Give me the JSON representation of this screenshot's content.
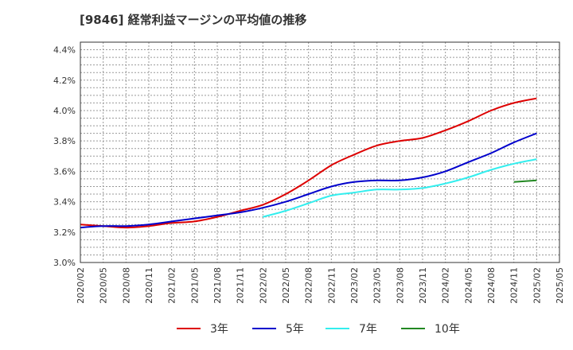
{
  "title": "[9846]  経常利益マージンの平均値の推移",
  "chart_data": {
    "type": "line",
    "title": "[9846]  経常利益マージンの平均値の推移",
    "xlabel": "",
    "ylabel": "",
    "x_ticks": [
      "2020/02",
      "2020/05",
      "2020/08",
      "2020/11",
      "2021/02",
      "2021/05",
      "2021/08",
      "2021/11",
      "2022/02",
      "2022/05",
      "2022/08",
      "2022/11",
      "2023/02",
      "2023/05",
      "2023/08",
      "2023/11",
      "2024/02",
      "2024/05",
      "2024/08",
      "2024/11",
      "2025/02",
      "2025/05"
    ],
    "y_ticks": [
      "3.0%",
      "3.2%",
      "3.4%",
      "3.6%",
      "3.8%",
      "4.0%",
      "4.2%",
      "4.4%"
    ],
    "ylim": [
      3.0,
      4.45
    ],
    "grid": true,
    "legend_position": "bottom",
    "series": [
      {
        "name": "3年",
        "color": "#dd0000",
        "x": [
          "2020/02",
          "2020/05",
          "2020/08",
          "2020/11",
          "2021/02",
          "2021/05",
          "2021/08",
          "2021/11",
          "2022/02",
          "2022/05",
          "2022/08",
          "2022/11",
          "2023/02",
          "2023/05",
          "2023/08",
          "2023/11",
          "2024/02",
          "2024/05",
          "2024/08",
          "2024/11",
          "2025/02"
        ],
        "values": [
          3.25,
          3.24,
          3.23,
          3.24,
          3.26,
          3.27,
          3.3,
          3.34,
          3.38,
          3.45,
          3.54,
          3.64,
          3.71,
          3.77,
          3.8,
          3.82,
          3.87,
          3.93,
          4.0,
          4.05,
          4.08
        ]
      },
      {
        "name": "5年",
        "color": "#0000cc",
        "x": [
          "2020/02",
          "2020/05",
          "2020/08",
          "2020/11",
          "2021/02",
          "2021/05",
          "2021/08",
          "2021/11",
          "2022/02",
          "2022/05",
          "2022/08",
          "2022/11",
          "2023/02",
          "2023/05",
          "2023/08",
          "2023/11",
          "2024/02",
          "2024/05",
          "2024/08",
          "2024/11",
          "2025/02"
        ],
        "values": [
          3.23,
          3.24,
          3.24,
          3.25,
          3.27,
          3.29,
          3.31,
          3.33,
          3.36,
          3.4,
          3.45,
          3.5,
          3.53,
          3.54,
          3.54,
          3.56,
          3.6,
          3.66,
          3.72,
          3.79,
          3.85
        ]
      },
      {
        "name": "7年",
        "color": "#33eeee",
        "x": [
          "2022/02",
          "2022/05",
          "2022/08",
          "2022/11",
          "2023/02",
          "2023/05",
          "2023/08",
          "2023/11",
          "2024/02",
          "2024/05",
          "2024/08",
          "2024/11",
          "2025/02"
        ],
        "values": [
          3.3,
          3.34,
          3.39,
          3.44,
          3.46,
          3.48,
          3.48,
          3.49,
          3.52,
          3.56,
          3.61,
          3.65,
          3.68
        ]
      },
      {
        "name": "10年",
        "color": "#228822",
        "x": [
          "2024/11",
          "2025/02"
        ],
        "values": [
          3.53,
          3.54
        ]
      }
    ]
  }
}
